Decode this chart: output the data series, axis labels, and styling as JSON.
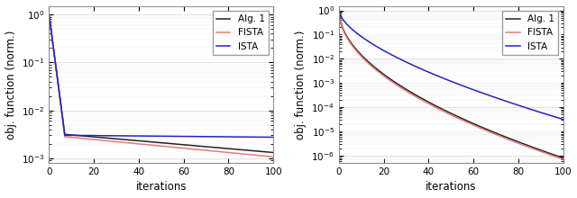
{
  "xlabel": "iterations",
  "ylabel": "obj. function (norm.)",
  "legend_labels": [
    "Alg. 1",
    "FISTA",
    "ISTA"
  ],
  "colors_alg1": "#222222",
  "colors_fista": "#e87878",
  "colors_ista": "#2222cc",
  "xlim": [
    0,
    100
  ],
  "plot1": {
    "yticks": [
      0.001,
      0.01,
      0.1,
      1.0
    ],
    "ymin": 0.0008,
    "ymax": 1.5
  },
  "plot2": {
    "yticks": [
      1e-06,
      0.0001,
      0.01,
      1.0
    ],
    "ymin": 5e-07,
    "ymax": 1.5
  },
  "xticks": [
    0,
    20,
    40,
    60,
    80,
    100
  ],
  "background_color": "#ffffff",
  "legend_loc": "upper right",
  "font_size": 8.5,
  "line_width": 1.1
}
